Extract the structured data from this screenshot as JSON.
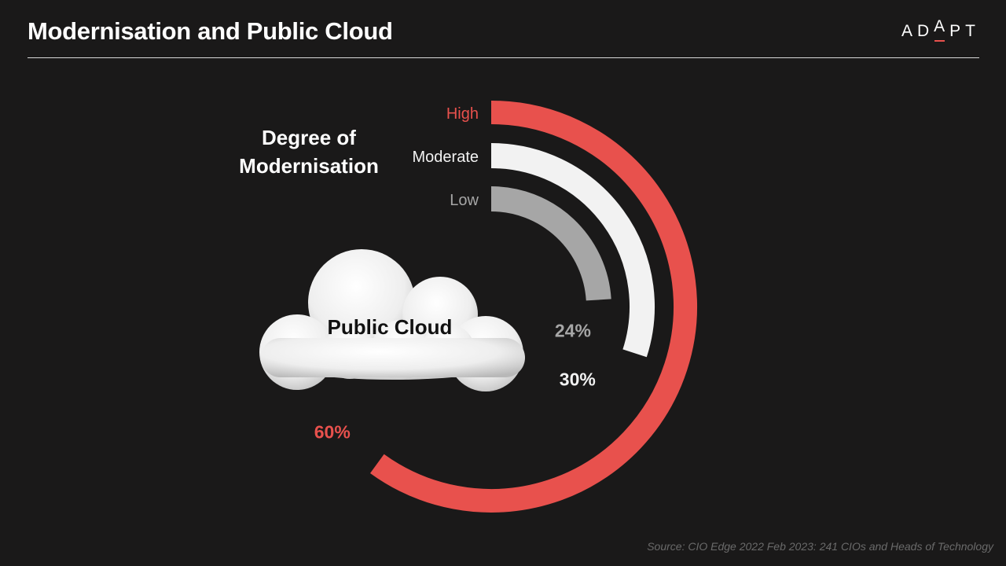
{
  "page": {
    "title": "Modernisation and Public Cloud",
    "logo_text": "ADAPT",
    "source": "Source: CIO Edge 2022 Feb 2023: 241 CIOs and Heads of Technology"
  },
  "colors": {
    "background": "#1a1919",
    "high": "#e8514d",
    "moderate": "#f2f2f2",
    "low": "#a6a6a6",
    "accent": "#e8514d"
  },
  "chart_data": {
    "type": "radial-bar",
    "title": "Degree of\nModernisation",
    "center_label": "Public Cloud",
    "max": 100,
    "categories": [
      "High",
      "Moderate",
      "Low"
    ],
    "values": [
      60,
      30,
      24
    ],
    "value_labels": [
      "60%",
      "30%",
      "24%"
    ],
    "series_colors": [
      "#e8514d",
      "#f2f2f2",
      "#a6a6a6"
    ]
  }
}
